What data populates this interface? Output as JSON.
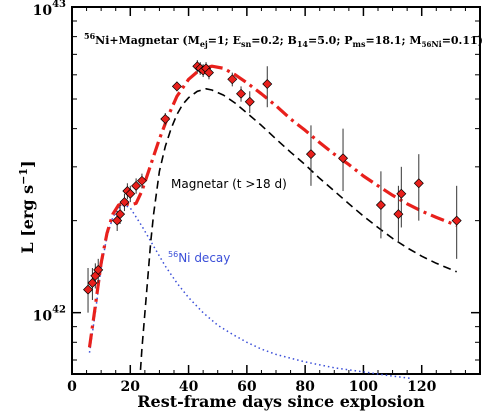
{
  "chart_data": {
    "type": "scatter",
    "title": "",
    "legend_text": {
      "prefix_sup": "56",
      "prefix": "Ni+Magnetar (",
      "m_label": "M",
      "m_sub": "ej",
      "m_val": "=1; ",
      "e_label": "E",
      "e_sub": "sn",
      "e_val": "=0.2; ",
      "b_label": "B",
      "b_sub": "14",
      "b_val": "=5.0; ",
      "p_label": "P",
      "p_sub": "ms",
      "p_val": "=18.1; ",
      "mni_label": "M",
      "mni_sub": "56",
      "mni_sub2": "Ni",
      "mni_val": "=0.11)"
    },
    "xlabel": "Rest-frame days since explosion",
    "ylabel": "L [erg s",
    "ylabel_sup": "−1",
    "ylabel_end": "]",
    "xlim": [
      0,
      140
    ],
    "ylim_log": [
      6.3e+41,
      1e+43
    ],
    "y_scale": "log",
    "x_ticks": [
      "0",
      "20",
      "40",
      "60",
      "80",
      "100",
      "120"
    ],
    "y_tick_base": "10",
    "y_tick_exps": [
      "42",
      "43"
    ],
    "annotations": {
      "magnetar": "Magnetar (t >18 d)",
      "ni_sup": "56",
      "ni": "Ni decay"
    },
    "colors": {
      "total": "#e8201c",
      "magnetar": "#000000",
      "ni": "#3b4fd8",
      "points": "#e8201c"
    },
    "series": [
      {
        "kind": "observed",
        "x": [
          5.5,
          7,
          8,
          9,
          15.5,
          16.5,
          18,
          19,
          20,
          22,
          24,
          32,
          36,
          43,
          44,
          45,
          46,
          47,
          55,
          58,
          61,
          67,
          82,
          93,
          106,
          112,
          113,
          119,
          132
        ],
        "y": [
          1.19e+42,
          1.25e+42,
          1.32e+42,
          1.38e+42,
          2e+42,
          2.1e+42,
          2.3e+42,
          2.5e+42,
          2.45e+42,
          2.6e+42,
          2.7e+42,
          4.3e+42,
          5.5e+42,
          6.4e+42,
          6.3e+42,
          6.2e+42,
          6.3e+42,
          6.1e+42,
          5.8e+42,
          5.2e+42,
          4.9e+42,
          5.6e+42,
          3.3e+42,
          3.2e+42,
          2.25e+42,
          2.1e+42,
          2.45e+42,
          2.65e+42,
          2e+42
        ],
        "err_lo": [
          1e+42,
          1.1e+42,
          1.2e+42,
          1.25e+42,
          1.85e+42,
          1.95e+42,
          2.15e+42,
          2.35e+42,
          2.3e+42,
          2.45e+42,
          2.55e+42,
          4.1e+42,
          5.3e+42,
          6.1e+42,
          6e+42,
          5.9e+42,
          6e+42,
          5.8e+42,
          5.5e+42,
          4.9e+42,
          4.5e+42,
          4.7e+42,
          2.6e+42,
          2.5e+42,
          1.75e+42,
          1.7e+42,
          1.9e+42,
          2e+42,
          1.5e+42
        ],
        "err_hi": [
          1.4e+42,
          1.4e+42,
          1.45e+42,
          1.5e+42,
          2.15e+42,
          2.25e+42,
          2.45e+42,
          2.65e+42,
          2.6e+42,
          2.75e+42,
          2.85e+42,
          4.5e+42,
          5.7e+42,
          6.7e+42,
          6.6e+42,
          6.5e+42,
          6.6e+42,
          6.4e+42,
          6.1e+42,
          5.5e+42,
          5.3e+42,
          6.4e+42,
          4.1e+42,
          4e+42,
          2.9e+42,
          2.6e+42,
          3e+42,
          3.3e+42,
          2.6e+42
        ]
      },
      {
        "kind": "model-total",
        "x": [
          6,
          8,
          10,
          12,
          14,
          16,
          18,
          20,
          22,
          24,
          26,
          28,
          30,
          33,
          36,
          40,
          44,
          48,
          52,
          56,
          60,
          65,
          70,
          75,
          80,
          85,
          90,
          95,
          100,
          105,
          110,
          115,
          120,
          125,
          132
        ],
        "y": [
          7.7e+41,
          1.05e+42,
          1.45e+42,
          1.82e+42,
          2.1e+42,
          2.25e+42,
          2.28e+42,
          2.25e+42,
          2.28e+42,
          2.5e+42,
          2.85e+42,
          3.25e+42,
          3.7e+42,
          4.4e+42,
          5.1e+42,
          5.8e+42,
          6.25e+42,
          6.4e+42,
          6.3e+42,
          6e+42,
          5.65e+42,
          5.2e+42,
          4.75e+42,
          4.3e+42,
          3.95e+42,
          3.6e+42,
          3.3e+42,
          3.05e+42,
          2.8e+42,
          2.6e+42,
          2.42e+42,
          2.27e+42,
          2.15e+42,
          2.05e+42,
          1.93e+42
        ]
      },
      {
        "kind": "model-magnetar",
        "x": [
          23.5,
          24,
          25,
          26,
          27,
          28,
          30,
          32,
          34,
          36,
          38,
          40,
          43,
          46,
          48,
          52,
          56,
          60,
          65,
          70,
          75,
          80,
          85,
          90,
          95,
          100,
          105,
          110,
          115,
          120,
          125,
          132
        ],
        "y": [
          6.5e+41,
          7.6e+41,
          1e+42,
          1.3e+42,
          1.7e+42,
          2.1e+42,
          2.9e+42,
          3.5e+42,
          4e+42,
          4.45e+42,
          4.8e+42,
          5.05e+42,
          5.3e+42,
          5.4e+42,
          5.35e+42,
          5.15e+42,
          4.85e+42,
          4.5e+42,
          4.1e+42,
          3.7e+42,
          3.35e+42,
          3.05e+42,
          2.75e+42,
          2.5e+42,
          2.27e+42,
          2.07e+42,
          1.9e+42,
          1.75e+42,
          1.63e+42,
          1.53e+42,
          1.45e+42,
          1.36e+42
        ]
      },
      {
        "kind": "model-ni",
        "x": [
          6,
          8,
          10,
          12,
          14,
          16,
          18,
          20,
          24,
          28,
          32,
          36,
          40,
          45,
          50,
          55,
          60,
          65,
          70,
          80,
          90,
          100,
          110,
          116
        ],
        "y": [
          7.4e+41,
          1e+42,
          1.4e+42,
          1.78e+42,
          2.05e+42,
          2.2e+42,
          2.25e+42,
          2.2e+42,
          1.92e+42,
          1.65e+42,
          1.42e+42,
          1.25e+42,
          1.12e+42,
          1e+42,
          9.1e+41,
          8.5e+41,
          8e+41,
          7.6e+41,
          7.3e+41,
          6.9e+41,
          6.6e+41,
          6.4e+41,
          6.2e+41,
          6.1e+41
        ]
      }
    ]
  }
}
